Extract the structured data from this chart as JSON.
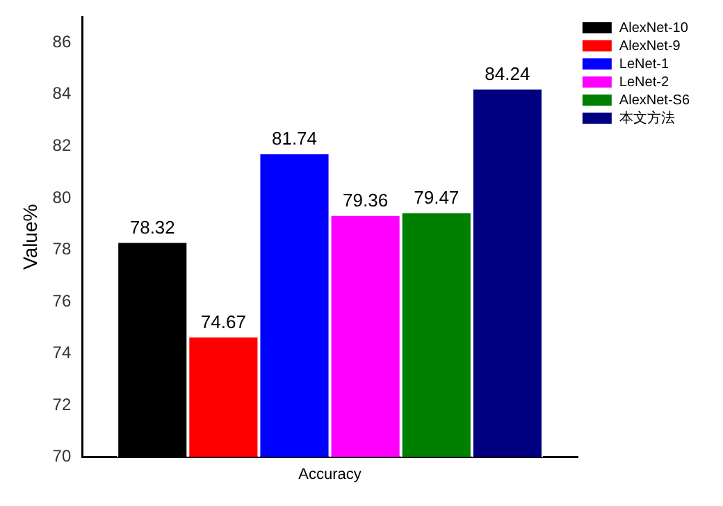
{
  "chart_data": {
    "type": "bar",
    "ylabel": "Value%",
    "categories": [
      "Accuracy"
    ],
    "series": [
      {
        "name": "AlexNet-10",
        "color": "#000000",
        "values": [
          78.32
        ]
      },
      {
        "name": "AlexNet-9",
        "color": "#ff0000",
        "values": [
          74.67
        ]
      },
      {
        "name": "LeNet-1",
        "color": "#0000ff",
        "values": [
          81.74
        ]
      },
      {
        "name": "LeNet-2",
        "color": "#ff00ff",
        "values": [
          79.36
        ]
      },
      {
        "name": "AlexNet-S6",
        "color": "#008000",
        "values": [
          79.47
        ]
      },
      {
        "name": "本文方法",
        "color": "#000080",
        "values": [
          84.24
        ]
      }
    ],
    "ylim": [
      70,
      87
    ],
    "yticks": [
      70,
      72,
      74,
      76,
      78,
      80,
      82,
      84,
      86
    ],
    "data_labels": true,
    "legend": "top right",
    "grid": false
  }
}
